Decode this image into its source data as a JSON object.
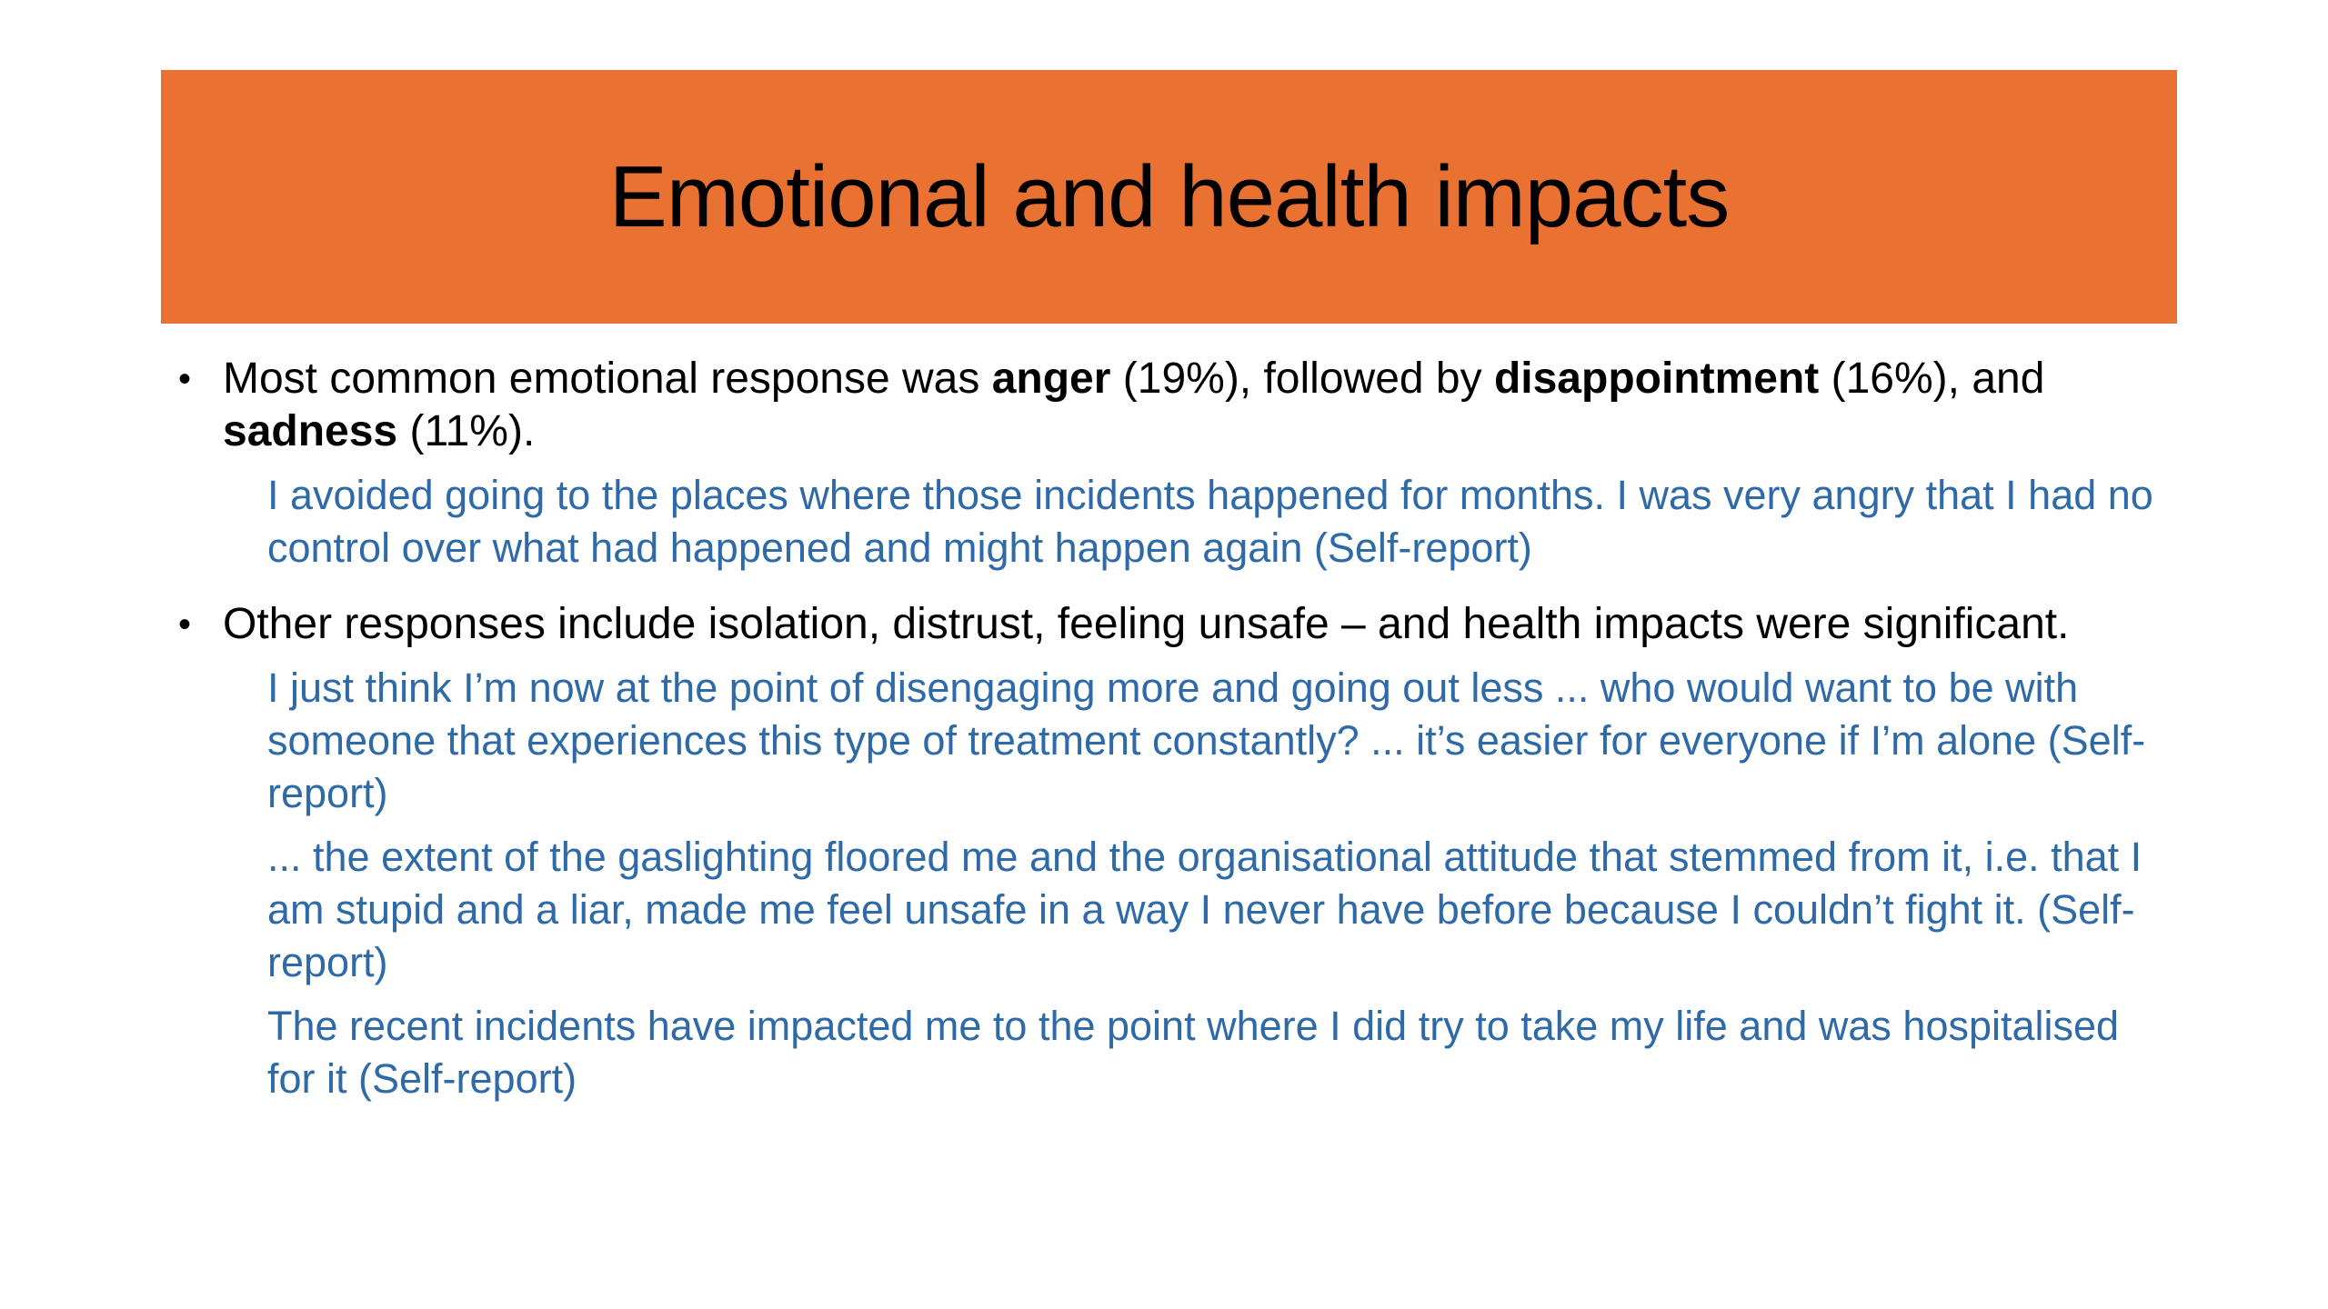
{
  "slide": {
    "title": "Emotional and health impacts",
    "accent_color": "#e97132",
    "quote_color": "#2e6aa8",
    "bullets": [
      {
        "marker": "•",
        "parts": {
          "t1": "Most common emotional response was ",
          "b1": "anger",
          "t2": " (19%), followed by ",
          "b2": "disappointment",
          "t3": " (16%), and ",
          "b3": "sadness",
          "t4": " (11%)."
        },
        "quotes": [
          "I avoided going to the places where those incidents happened for months. I was very angry that I had no control over what had happened and might happen again (Self-report)"
        ]
      },
      {
        "marker": "•",
        "text": "Other responses include isolation, distrust, feeling unsafe – and health impacts were significant.",
        "quotes": [
          "I just think I’m now at the point of disengaging more and going out less ... who would want to be with someone that experiences this type of treatment constantly? ... it’s easier for everyone if I’m alone (Self-report)",
          "... the extent of the gaslighting floored me and the organisational attitude that stemmed from it, i.e. that I am stupid and a liar, made me feel unsafe in a way I never have before because I couldn’t fight it. (Self-report)",
          "The recent incidents have impacted me to the point where I did try to take my life and was hospitalised for it (Self-report)"
        ]
      }
    ]
  }
}
